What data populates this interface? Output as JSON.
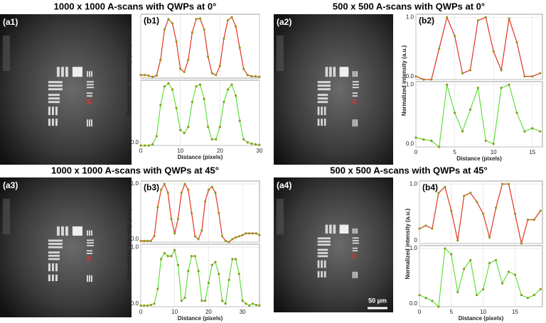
{
  "titles": [
    "1000 x 1000 A-scans with QWPs at 0°",
    "500 x 500 A-scans with QWPs at 0°",
    "1000 x 1000 A-scans with QWPs at 45°",
    "500 x 500 A-scans with QWPs at 45°"
  ],
  "images": [
    {
      "label": "(a1)"
    },
    {
      "label": "(a2)"
    },
    {
      "label": "(a3)"
    },
    {
      "label": "(a4)"
    }
  ],
  "scale_bar": "50 µm",
  "chart_data": [
    {
      "type": "line",
      "label": "(b1)",
      "ylabel": "Normalized intensity (a.u.)",
      "color": "#e0321e",
      "x": [
        0,
        1,
        2,
        3,
        4,
        5,
        6,
        7,
        8,
        9,
        10,
        11,
        12,
        13,
        14,
        15,
        16,
        17,
        18,
        19,
        20,
        21,
        22,
        23,
        24,
        25,
        26,
        27,
        28,
        29,
        30
      ],
      "values": [
        0.05,
        0.05,
        0.04,
        0.02,
        0.04,
        0.3,
        0.8,
        0.97,
        0.9,
        0.6,
        0.15,
        0.1,
        0.3,
        0.75,
        0.97,
        0.98,
        0.8,
        0.35,
        0.08,
        0.05,
        0.2,
        0.65,
        0.95,
        1.0,
        0.85,
        0.5,
        0.15,
        0.05,
        0.03,
        0.03,
        0.02
      ],
      "xlim": [
        0,
        30
      ],
      "ylim": [
        0,
        1.05
      ],
      "grid": true
    },
    {
      "type": "line",
      "xlabel": "Distance (pixels)",
      "color": "#5ee03c",
      "x": [
        0,
        1,
        2,
        3,
        4,
        5,
        6,
        7,
        8,
        9,
        10,
        11,
        12,
        13,
        14,
        15,
        16,
        17,
        18,
        19,
        20,
        21,
        22,
        23,
        24,
        25,
        26,
        27,
        28,
        29,
        30
      ],
      "values": [
        0,
        0,
        0,
        0.02,
        0.15,
        0.65,
        0.95,
        1.0,
        0.9,
        0.6,
        0.25,
        0.2,
        0.3,
        0.7,
        0.95,
        0.98,
        0.75,
        0.3,
        0.1,
        0.1,
        0.3,
        0.7,
        0.9,
        0.98,
        0.8,
        0.4,
        0.1,
        0.05,
        0.03,
        0.02,
        0.01
      ],
      "xlim": [
        0,
        30
      ],
      "ylim": [
        0,
        1.05
      ],
      "xticks": [
        0,
        10,
        20,
        30
      ],
      "yticks": [
        {
          "value": 0,
          "label": "0.0"
        }
      ],
      "grid": true
    },
    {
      "type": "line",
      "label": "(b2)",
      "ylabel": "Normalized intensity (a.u.)",
      "color": "#e0321e",
      "x": [
        0,
        1,
        2,
        3,
        4,
        5,
        6,
        7,
        8,
        9,
        10,
        11,
        12,
        13,
        14,
        15,
        16
      ],
      "values": [
        0.05,
        0.0,
        0.0,
        0.5,
        1.0,
        0.7,
        0.1,
        0.15,
        0.95,
        1.0,
        0.45,
        0.15,
        0.98,
        0.6,
        0.05,
        0.05,
        0.1
      ],
      "xlim": [
        0,
        16.3
      ],
      "ylim": [
        0,
        1.05
      ],
      "yticks": [
        {
          "value": 0,
          "label": "0.0"
        },
        {
          "value": 1,
          "label": "1.0"
        }
      ],
      "grid": true
    },
    {
      "type": "line",
      "xlabel": "Distance (pixels)",
      "color": "#5ee03c",
      "x": [
        0,
        1,
        2,
        3,
        4,
        5,
        6,
        7,
        8,
        9,
        10,
        11,
        12,
        13,
        14,
        15,
        16
      ],
      "values": [
        0.15,
        0.12,
        0.1,
        0.0,
        1.0,
        0.55,
        0.25,
        0.6,
        0.95,
        0.1,
        0.05,
        0.95,
        1.0,
        0.55,
        0.25,
        0.3,
        0.25
      ],
      "xlim": [
        0,
        16.3
      ],
      "ylim": [
        0,
        1.05
      ],
      "xticks": [
        0,
        5,
        10,
        15
      ],
      "yticks": [
        {
          "value": 0,
          "label": "0.0"
        },
        {
          "value": 1,
          "label": "1.0"
        }
      ],
      "grid": true
    },
    {
      "type": "line",
      "label": "(b3)",
      "ylabel": "Normalized intensity (a.u.)",
      "color": "#e0321e",
      "x": [
        0,
        1,
        2,
        3,
        4,
        5,
        6,
        7,
        8,
        9,
        10,
        11,
        12,
        13,
        14,
        15,
        16,
        17,
        18,
        19,
        20,
        21,
        22,
        23,
        24,
        25,
        26,
        27,
        28,
        29,
        30,
        31,
        32,
        33,
        34,
        35
      ],
      "values": [
        0.02,
        0.02,
        0.02,
        0.02,
        0.1,
        0.6,
        0.9,
        1.0,
        0.85,
        0.4,
        0.15,
        0.4,
        0.85,
        1.0,
        0.9,
        0.5,
        0.1,
        0.05,
        0.2,
        0.7,
        0.9,
        0.95,
        0.85,
        0.5,
        0.1,
        0.02,
        0.0,
        0.05,
        0.08,
        0.1,
        0.12,
        0.15,
        0.15,
        0.15,
        0.15,
        0.12
      ],
      "xlim": [
        0,
        35
      ],
      "ylim": [
        0,
        1.05
      ],
      "yticks": [
        {
          "value": 0,
          "label": "0.0"
        },
        {
          "value": 1,
          "label": "1.0"
        }
      ],
      "grid": true
    },
    {
      "type": "line",
      "xlabel": "Distance (pixels)",
      "color": "#5ee03c",
      "x": [
        0,
        1,
        2,
        3,
        4,
        5,
        6,
        7,
        8,
        9,
        10,
        11,
        12,
        13,
        14,
        15,
        16,
        17,
        18,
        19,
        20,
        21,
        22,
        23,
        24,
        25,
        26,
        27,
        28,
        29,
        30,
        31,
        32,
        33,
        34,
        35
      ],
      "values": [
        0.02,
        0.02,
        0.02,
        0.03,
        0.05,
        0.3,
        0.8,
        0.9,
        0.85,
        0.85,
        0.95,
        0.7,
        0.1,
        0.15,
        0.6,
        0.85,
        0.85,
        0.6,
        0.1,
        0.1,
        0.4,
        0.7,
        0.75,
        0.55,
        0.1,
        0.05,
        0.45,
        0.8,
        0.8,
        0.55,
        0.1,
        0.05,
        0.02,
        0.05,
        0.03,
        0.02
      ],
      "xlim": [
        0,
        35
      ],
      "ylim": [
        0,
        1.05
      ],
      "xticks": [
        0,
        10,
        20,
        30
      ],
      "yticks": [
        {
          "value": 0,
          "label": "0.0"
        },
        {
          "value": 1,
          "label": "1.0"
        }
      ],
      "grid": true
    },
    {
      "type": "line",
      "label": "(b4)",
      "ylabel": "Normalized intensity (a.u.)",
      "color": "#e0321e",
      "x": [
        0,
        1,
        2,
        3,
        4,
        5,
        6,
        7,
        8,
        9,
        10,
        11,
        12,
        13,
        14,
        15,
        16,
        17,
        18,
        19
      ],
      "values": [
        0.25,
        0.3,
        0.25,
        0.85,
        0.95,
        0.55,
        0.05,
        0.8,
        0.85,
        0.7,
        0.5,
        0.1,
        0.6,
        1.0,
        1.0,
        0.5,
        0.0,
        0.4,
        0.4,
        0.55
      ],
      "xlim": [
        0,
        19.3
      ],
      "ylim": [
        0,
        1.05
      ],
      "yticks": [
        0,
        {
          "value": 1,
          "label": "1.0"
        }
      ],
      "grid": true
    },
    {
      "type": "line",
      "xlabel": "Distance (pixels)",
      "color": "#5ee03c",
      "x": [
        0,
        1,
        2,
        3,
        4,
        5,
        6,
        7,
        8,
        9,
        10,
        11,
        12,
        13,
        14,
        15,
        16,
        17,
        18,
        19
      ],
      "values": [
        0.2,
        0.15,
        0.1,
        0.0,
        1.0,
        0.9,
        0.25,
        0.65,
        0.8,
        0.2,
        0.3,
        0.75,
        0.8,
        0.4,
        0.6,
        0.55,
        0.2,
        0.15,
        0.2,
        0.3
      ],
      "xlim": [
        0,
        19.3
      ],
      "ylim": [
        0,
        1.05
      ],
      "xticks": [
        0,
        5,
        10,
        15
      ],
      "yticks": [
        {
          "value": 0,
          "label": "0.0"
        },
        {
          "value": 1,
          "label": "1.0"
        }
      ],
      "grid": true
    }
  ]
}
